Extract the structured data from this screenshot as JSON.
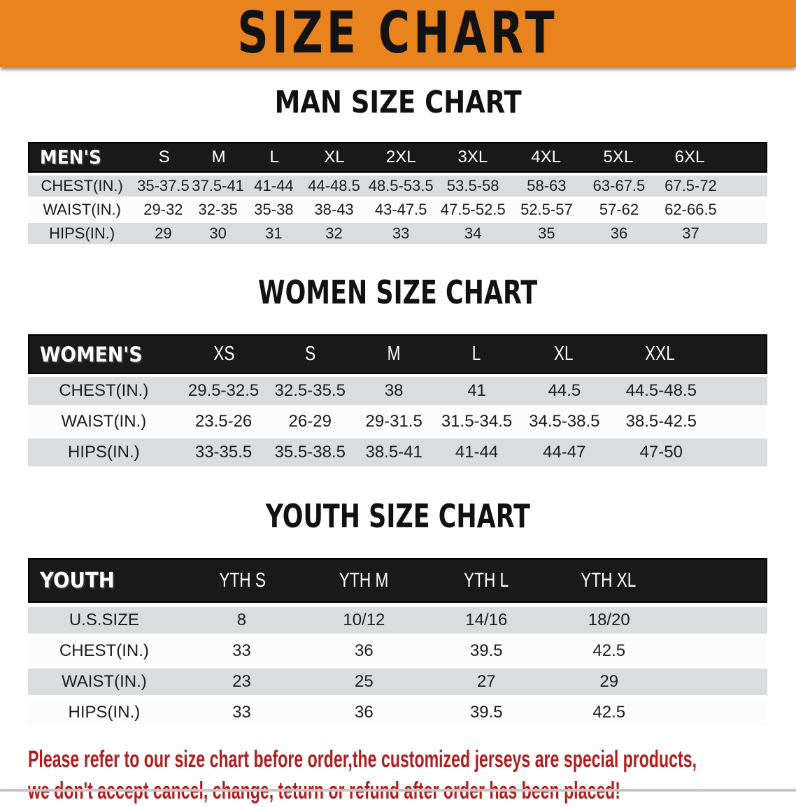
{
  "banner": {
    "title": "SIZE CHART"
  },
  "colors": {
    "banner_bg": "#E8831D",
    "header_bar": "#191919",
    "row_gray": "#DBDCDE",
    "row_white": "#FCFCFC",
    "disclaimer_red": "#B01E1E",
    "text_dark": "#1C1C1C"
  },
  "sections": [
    {
      "heading": "MAN SIZE CHART",
      "table": {
        "label_header": "MEN'S",
        "size_headers": [
          "S",
          "M",
          "L",
          "XL",
          "2XL",
          "3XL",
          "4XL",
          "5XL",
          "6XL"
        ],
        "rows": [
          {
            "label": "CHEST(IN.)",
            "values": [
              "35-37.5",
              "37.5-41",
              "41-44",
              "44-48.5",
              "48.5-53.5",
              "53.5-58",
              "58-63",
              "63-67.5",
              "67.5-72"
            ]
          },
          {
            "label": "WAIST(IN.)",
            "values": [
              "29-32",
              "32-35",
              "35-38",
              "38-43",
              "43-47.5",
              "47.5-52.5",
              "52.5-57",
              "57-62",
              "62-66.5"
            ]
          },
          {
            "label": "HIPS(IN.)",
            "values": [
              "29",
              "30",
              "31",
              "32",
              "33",
              "34",
              "35",
              "36",
              "37"
            ]
          }
        ]
      }
    },
    {
      "heading": "WOMEN SIZE CHART",
      "table": {
        "label_header": "WOMEN'S",
        "size_headers": [
          "XS",
          "S",
          "M",
          "L",
          "XL",
          "XXL"
        ],
        "rows": [
          {
            "label": "CHEST(IN.)",
            "values": [
              "29.5-32.5",
              "32.5-35.5",
              "38",
              "41",
              "44.5",
              "44.5-48.5"
            ]
          },
          {
            "label": "WAIST(IN.)",
            "values": [
              "23.5-26",
              "26-29",
              "29-31.5",
              "31.5-34.5",
              "34.5-38.5",
              "38.5-42.5"
            ]
          },
          {
            "label": "HIPS(IN.)",
            "values": [
              "33-35.5",
              "35.5-38.5",
              "38.5-41",
              "41-44",
              "44-47",
              "47-50"
            ]
          }
        ]
      }
    },
    {
      "heading": "YOUTH SIZE CHART",
      "table": {
        "label_header": "YOUTH",
        "size_headers": [
          "YTH S",
          "YTH M",
          "YTH L",
          "YTH XL"
        ],
        "rows": [
          {
            "label": "U.S.SIZE",
            "values": [
              "8",
              "10/12",
              "14/16",
              "18/20"
            ]
          },
          {
            "label": "CHEST(IN.)",
            "values": [
              "33",
              "36",
              "39.5",
              "42.5"
            ]
          },
          {
            "label": "WAIST(IN.)",
            "values": [
              "23",
              "25",
              "27",
              "29"
            ]
          },
          {
            "label": "HIPS(IN.)",
            "values": [
              "33",
              "36",
              "39.5",
              "42.5"
            ]
          }
        ]
      }
    }
  ],
  "disclaimer": {
    "line1": "Please refer to our size chart before order,the customized jerseys are special products,",
    "line2": "we don't accept cancel, change, teturn or refund after order has been placed!"
  }
}
